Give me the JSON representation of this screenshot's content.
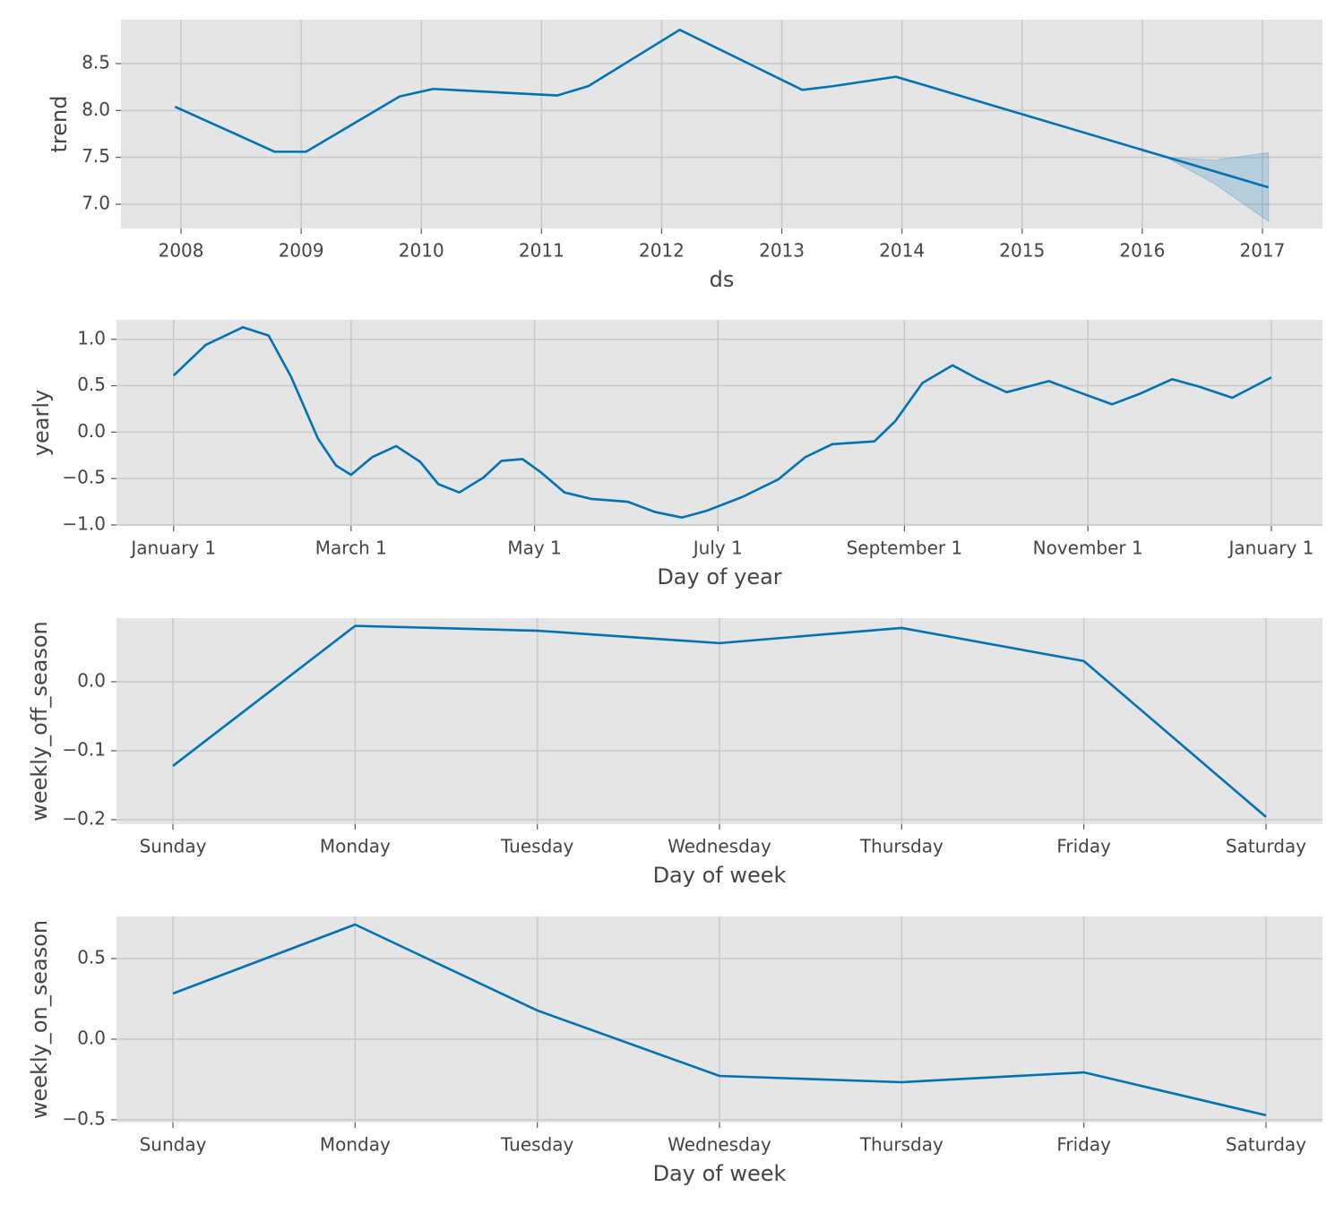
{
  "chart_data": [
    {
      "type": "line",
      "ylabel": "trend",
      "xlabel": "ds",
      "color": "#0072b2",
      "grid": true,
      "x": [
        2007.95,
        2008.78,
        2009.04,
        2009.82,
        2010.1,
        2011.13,
        2011.39,
        2012.15,
        2013.17,
        2013.43,
        2013.95,
        2017.05
      ],
      "values": [
        8.04,
        7.56,
        7.56,
        8.15,
        8.23,
        8.16,
        8.26,
        8.86,
        8.22,
        8.26,
        8.36,
        7.18
      ],
      "band": {
        "x": [
          2016.2,
          2016.6,
          2017.05
        ],
        "lower": [
          7.5,
          7.22,
          6.82
        ],
        "upper": [
          7.5,
          7.47,
          7.55
        ]
      },
      "xlim": [
        2007.5,
        2017.5
      ],
      "xticks": [
        2008,
        2009,
        2010,
        2011,
        2012,
        2013,
        2014,
        2015,
        2016,
        2017
      ],
      "ylim": [
        6.742,
        8.968
      ],
      "yticks": [
        {
          "value": 7.0,
          "label": "7.0"
        },
        7.5,
        {
          "value": 8.0,
          "label": "8.0"
        },
        8.5
      ]
    },
    {
      "type": "line",
      "ylabel": "yearly",
      "xlabel": "Day of year",
      "color": "#0072b2",
      "grid": true,
      "x": [
        0,
        10.7,
        23,
        31.6,
        39,
        48,
        54,
        59,
        66,
        74,
        82,
        88,
        95,
        103,
        109,
        116,
        122,
        130,
        139,
        151,
        160,
        169,
        177,
        189,
        201,
        210,
        219,
        233,
        240,
        249,
        259,
        267,
        277,
        291,
        301,
        312,
        321,
        332,
        341,
        352,
        365
      ],
      "values": [
        0.61,
        0.94,
        1.13,
        1.04,
        0.6,
        -0.07,
        -0.36,
        -0.46,
        -0.27,
        -0.15,
        -0.32,
        -0.56,
        -0.65,
        -0.49,
        -0.31,
        -0.29,
        -0.43,
        -0.65,
        -0.72,
        -0.75,
        -0.86,
        -0.92,
        -0.85,
        -0.7,
        -0.51,
        -0.27,
        -0.13,
        -0.1,
        0.12,
        0.53,
        0.72,
        0.58,
        0.43,
        0.55,
        0.43,
        0.3,
        0.41,
        0.57,
        0.49,
        0.37,
        0.59
      ],
      "xlim": [
        -19,
        382
      ],
      "xticks": [
        {
          "value": 0,
          "label": "January 1"
        },
        {
          "value": 59,
          "label": "March 1"
        },
        {
          "value": 120,
          "label": "May 1"
        },
        {
          "value": 181,
          "label": "July 1"
        },
        {
          "value": 243,
          "label": "September 1"
        },
        {
          "value": 304,
          "label": "November 1"
        },
        {
          "value": 365,
          "label": "January 1"
        }
      ],
      "ylim": [
        -1.01,
        1.21
      ],
      "yticks": [
        {
          "value": -1.0,
          "label": "−1.0"
        },
        {
          "value": -0.5,
          "label": "−0.5"
        },
        {
          "value": 0.0,
          "label": "0.0"
        },
        0.5,
        {
          "value": 1.0,
          "label": "1.0"
        }
      ]
    },
    {
      "type": "line",
      "ylabel": "weekly_off_season",
      "xlabel": "Day of week",
      "color": "#0072b2",
      "grid": true,
      "categories": [
        "Sunday",
        "Monday",
        "Tuesday",
        "Wednesday",
        "Thursday",
        "Friday",
        "Saturday"
      ],
      "values": [
        -0.122,
        0.081,
        0.074,
        0.056,
        0.078,
        0.03,
        -0.196
      ],
      "ylim": [
        -0.2065,
        0.0922
      ],
      "yticks": [
        {
          "value": -0.2,
          "label": "−0.2"
        },
        {
          "value": -0.1,
          "label": "−0.1"
        },
        {
          "value": 0.0,
          "label": "0.0"
        }
      ]
    },
    {
      "type": "line",
      "ylabel": "weekly_on_season",
      "xlabel": "Day of week",
      "color": "#0072b2",
      "grid": true,
      "categories": [
        "Sunday",
        "Monday",
        "Tuesday",
        "Wednesday",
        "Thursday",
        "Friday",
        "Saturday"
      ],
      "values": [
        0.283,
        0.711,
        0.178,
        -0.228,
        -0.267,
        -0.206,
        -0.472
      ],
      "ylim": [
        -0.517,
        0.761
      ],
      "yticks": [
        {
          "value": -0.5,
          "label": "−0.5"
        },
        {
          "value": 0.0,
          "label": "0.0"
        },
        0.5
      ]
    }
  ]
}
